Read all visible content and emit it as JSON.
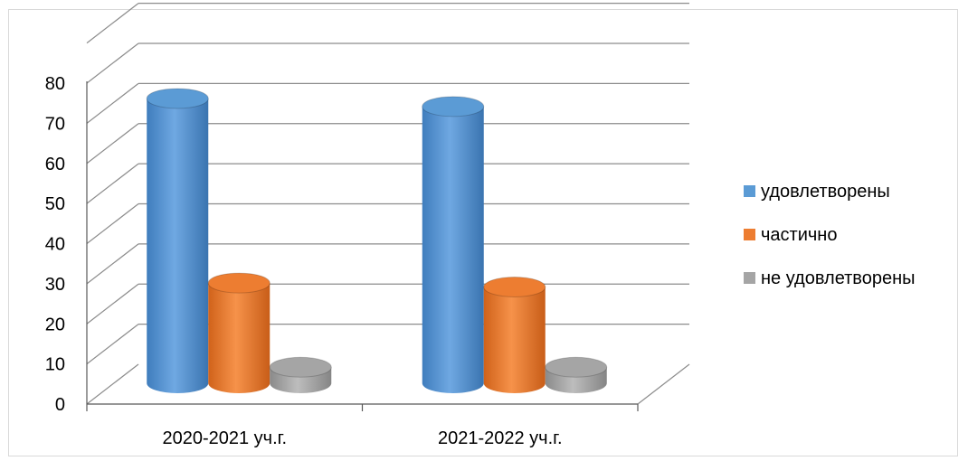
{
  "chart_data": {
    "type": "bar",
    "style": "3d-cylinder",
    "categories": [
      "2020-2021 уч.г.",
      "2021-2022 уч.г."
    ],
    "series": [
      {
        "name": "удовлетворены",
        "values": [
          71,
          69
        ],
        "color": "#5b9bd5"
      },
      {
        "name": "частично",
        "values": [
          25,
          24
        ],
        "color": "#ed7d31"
      },
      {
        "name": "не удовлетворены",
        "values": [
          4,
          4
        ],
        "color": "#a5a5a5"
      }
    ],
    "yticks": [
      "0",
      "10",
      "20",
      "30",
      "40",
      "50",
      "60",
      "70",
      "80"
    ],
    "ylim": [
      0,
      80
    ],
    "grid": true,
    "legend_position": "right"
  }
}
